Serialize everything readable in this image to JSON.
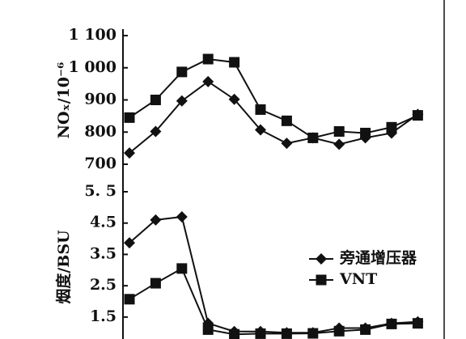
{
  "chart_data": [
    {
      "type": "line",
      "ylabel": "NOₓ/10⁻⁶",
      "categories": [
        null,
        null,
        null,
        null,
        null,
        null,
        null,
        null,
        null,
        null,
        null,
        null
      ],
      "series": [
        {
          "name": "旁通增压器",
          "color": "#111111",
          "marker": "diamond",
          "values": [
            735,
            802,
            897,
            957,
            902,
            807,
            765,
            782,
            762,
            782,
            797,
            855
          ]
        },
        {
          "name": "VNT",
          "color": "#111111",
          "marker": "square",
          "values": [
            845,
            900,
            987,
            1027,
            1017,
            870,
            835,
            782,
            802,
            797,
            815,
            852
          ]
        }
      ],
      "ylim": [
        700,
        1100
      ],
      "yticks": [
        700,
        800,
        900,
        {
          "value": 1000,
          "label": "1 000"
        },
        {
          "value": 1100,
          "label": "1 100"
        }
      ]
    },
    {
      "type": "line",
      "ylabel": "烟度/BSU",
      "categories": [
        null,
        null,
        null,
        null,
        null,
        null,
        null,
        null,
        null,
        null,
        null,
        null
      ],
      "series": [
        {
          "name": "旁通增压器",
          "color": "#111111",
          "marker": "diamond",
          "values": [
            3.87,
            4.6,
            4.7,
            1.3,
            1.04,
            1.04,
            1.0,
            1.0,
            1.15,
            1.15,
            1.3,
            1.35
          ]
        },
        {
          "name": "VNT",
          "color": "#111111",
          "marker": "square",
          "values": [
            2.07,
            2.58,
            3.05,
            1.1,
            0.95,
            0.97,
            0.97,
            0.98,
            1.05,
            1.1,
            1.28,
            1.3
          ]
        }
      ],
      "ylim": [
        0.8,
        5.5
      ],
      "yticks": [
        1.5,
        2.5,
        3.5,
        4.5,
        {
          "value": 5.5,
          "label": "5. 5"
        }
      ],
      "legend": "right"
    }
  ]
}
